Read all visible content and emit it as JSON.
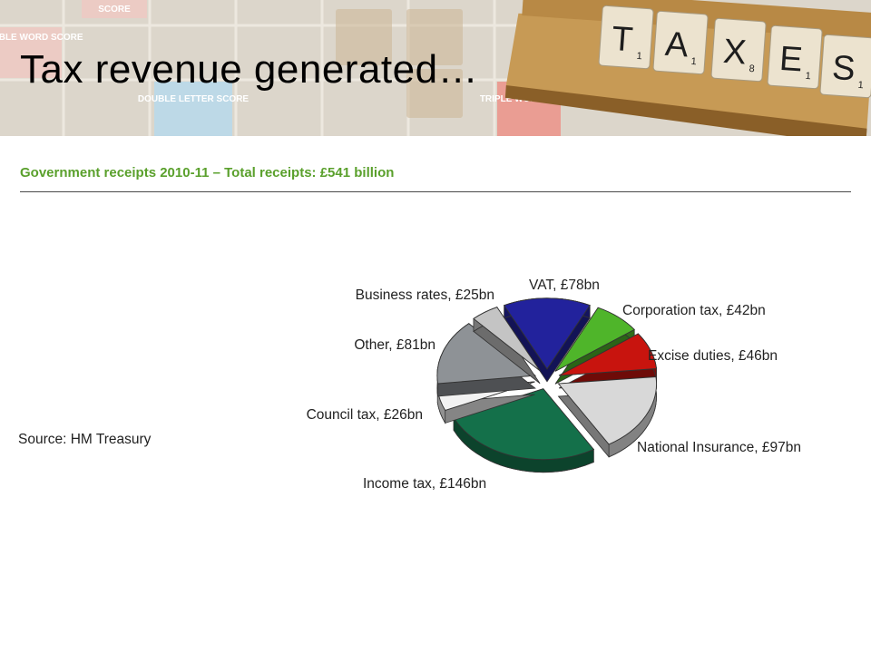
{
  "slide_title": "Tax revenue generated…",
  "banner": {
    "tiles": [
      {
        "letter": "T",
        "points": "1"
      },
      {
        "letter": "A",
        "points": "1"
      },
      {
        "letter": "X",
        "points": "8"
      },
      {
        "letter": "E",
        "points": "1"
      },
      {
        "letter": "S",
        "points": "1"
      }
    ],
    "board_squares": [
      {
        "text": "DOUBLE WORD SCORE",
        "color": "#f2b9b5"
      },
      {
        "text": "DOUBLE LETTER SCORE",
        "color": "#a9d3ec"
      },
      {
        "text": "TRIPLE WORD SCORE",
        "color": "#ea5a4f"
      },
      {
        "text": "SCORE",
        "color": "#f2b9b5"
      }
    ]
  },
  "source": "Source: HM Treasury",
  "chart_data": {
    "type": "pie",
    "title": "Government receipts 2010-11 – Total receipts: £541 billion",
    "unit": "£bn",
    "slices": [
      {
        "label": "VAT, £78bn",
        "value": 78,
        "color": "#22229c"
      },
      {
        "label": "Corporation tax, £42bn",
        "value": 42,
        "color": "#4fb52a"
      },
      {
        "label": "Excise duties, £46bn",
        "value": 46,
        "color": "#c8140e"
      },
      {
        "label": "National Insurance, £97bn",
        "value": 97,
        "color": "#d8d8d8"
      },
      {
        "label": "Income tax, £146bn",
        "value": 146,
        "color": "#14704a"
      },
      {
        "label": "Council tax, £26bn",
        "value": 26,
        "color": "#f2f2f2"
      },
      {
        "label": "Other, £81bn",
        "value": 81,
        "color": "#8e9296"
      },
      {
        "label": "Business rates, £25bn",
        "value": 25,
        "color": "#c4c4c4"
      }
    ],
    "style": "3d exploded pie"
  }
}
